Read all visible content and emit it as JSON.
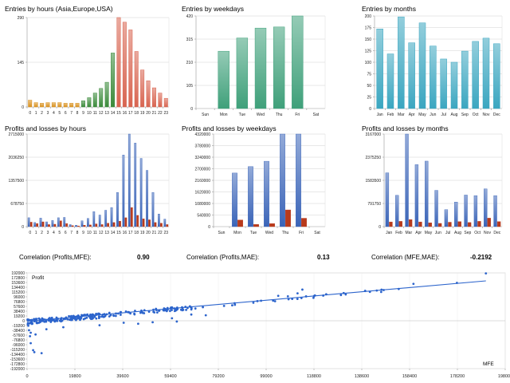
{
  "colors": {
    "hours": [
      "#d8901c",
      "#d8901c",
      "#d8901c",
      "#d8901c",
      "#d8901c",
      "#d8901c",
      "#d8901c",
      "#d8901c",
      "#d8901c",
      "#3a8a3a",
      "#3a8a3a",
      "#3a8a3a",
      "#3a8a3a",
      "#3a8a3a",
      "#3a8a3a",
      "#d86450",
      "#d86450",
      "#d86450",
      "#d86450",
      "#d86450",
      "#d86450",
      "#d86450",
      "#d86450",
      "#d86450"
    ],
    "weekdays": "#3fa07a",
    "months": "#3aa6c0",
    "profit": "#3a64b8",
    "loss": "#b83a1c",
    "scatter": "#2c64cc",
    "grid": "#d0d0d0",
    "border": "#d9d9d9"
  },
  "chart_data": [
    {
      "id": "entries-hours",
      "type": "bar",
      "title": "Entries by hours (Asia,Europe,USA)",
      "categories": [
        "0",
        "1",
        "2",
        "3",
        "4",
        "5",
        "6",
        "7",
        "8",
        "9",
        "10",
        "11",
        "12",
        "13",
        "14",
        "15",
        "16",
        "17",
        "18",
        "19",
        "20",
        "21",
        "22",
        "23"
      ],
      "values": [
        22,
        14,
        12,
        14,
        14,
        14,
        12,
        12,
        12,
        20,
        30,
        45,
        60,
        80,
        175,
        290,
        275,
        250,
        180,
        120,
        85,
        62,
        45,
        28
      ],
      "yticks": [
        "0",
        "145",
        "290"
      ],
      "ylim": [
        0,
        290
      ]
    },
    {
      "id": "entries-weekdays",
      "type": "bar",
      "title": "Entries by weekdays",
      "categories": [
        "Sun",
        "Mon",
        "Tue",
        "Wed",
        "Thu",
        "Fri",
        "Sat"
      ],
      "values": [
        0,
        260,
        320,
        365,
        370,
        420,
        0
      ],
      "yticks": [
        "0",
        "105",
        "210",
        "315",
        "420"
      ],
      "ylim": [
        0,
        420
      ]
    },
    {
      "id": "entries-months",
      "type": "bar",
      "title": "Entries by months",
      "categories": [
        "Jan",
        "Feb",
        "Mar",
        "Apr",
        "May",
        "Jun",
        "Jul",
        "Aug",
        "Sep",
        "Oct",
        "Nov",
        "Dec"
      ],
      "values": [
        172,
        118,
        198,
        142,
        185,
        135,
        107,
        100,
        124,
        145,
        152,
        140
      ],
      "yticks": [
        "0",
        "25",
        "50",
        "75",
        "100",
        "125",
        "150",
        "175",
        "200"
      ],
      "ylim": [
        0,
        200
      ]
    },
    {
      "id": "pl-hours",
      "type": "bar",
      "title": "Profits and losses by hours",
      "categories": [
        "0",
        "1",
        "2",
        "3",
        "4",
        "5",
        "6",
        "7",
        "8",
        "9",
        "10",
        "11",
        "12",
        "13",
        "14",
        "15",
        "16",
        "17",
        "18",
        "19",
        "20",
        "21",
        "22",
        "23"
      ],
      "series": [
        {
          "values": [
            260000,
            120000,
            250000,
            140000,
            180000,
            260000,
            270000,
            60000,
            40000,
            170000,
            240000,
            440000,
            340000,
            480000,
            560000,
            1000000,
            2100000,
            2715000,
            2450000,
            2000000,
            1650000,
            1000000,
            370000,
            220000
          ]
        },
        {
          "values": [
            130000,
            90000,
            140000,
            60000,
            70000,
            170000,
            90000,
            30000,
            20000,
            40000,
            50000,
            80000,
            60000,
            100000,
            120000,
            160000,
            260000,
            560000,
            330000,
            230000,
            200000,
            120000,
            100000,
            60000
          ]
        }
      ],
      "yticks": [
        "0",
        "678750",
        "1357500",
        "2036250",
        "2715000"
      ],
      "ylim": [
        0,
        2715000
      ]
    },
    {
      "id": "pl-weekdays",
      "type": "bar",
      "title": "Profits and losses by weekdays",
      "categories": [
        "Sun",
        "Mon",
        "Tue",
        "Wed",
        "Thu",
        "Fri",
        "Sat"
      ],
      "series": [
        {
          "values": [
            0,
            2500000,
            2800000,
            3050000,
            4320000,
            4320000,
            0
          ]
        },
        {
          "values": [
            0,
            310000,
            100000,
            140000,
            780000,
            390000,
            0
          ]
        }
      ],
      "yticks": [
        "0",
        "540000",
        "1080000",
        "1620000",
        "2160000",
        "2700000",
        "3240000",
        "3780000",
        "4320000"
      ],
      "ylim": [
        0,
        4320000
      ]
    },
    {
      "id": "pl-months",
      "type": "bar",
      "title": "Profits and losses by months",
      "categories": [
        "Jan",
        "Feb",
        "Mar",
        "Apr",
        "May",
        "Jun",
        "Jul",
        "Aug",
        "Sep",
        "Oct",
        "Nov",
        "Dec"
      ],
      "series": [
        {
          "values": [
            1840000,
            1070000,
            3167000,
            2120000,
            2240000,
            1240000,
            580000,
            840000,
            1080000,
            1060000,
            1290000,
            1060000
          ]
        },
        {
          "values": [
            160000,
            180000,
            240000,
            160000,
            130000,
            110000,
            150000,
            170000,
            140000,
            180000,
            290000,
            170000
          ]
        }
      ],
      "yticks": [
        "0",
        "791750",
        "1583500",
        "2375250",
        "3167000"
      ],
      "ylim": [
        0,
        3167000
      ]
    },
    {
      "id": "scatter",
      "type": "scatter",
      "ylabel": "Profit",
      "xlabel": "MFE",
      "xlim": [
        0,
        198000
      ],
      "ylim": [
        -192000,
        192000
      ],
      "xticks": [
        "0",
        "19800",
        "39600",
        "59400",
        "79200",
        "99000",
        "118800",
        "138600",
        "158400",
        "178200",
        "198000"
      ],
      "yticks": [
        "192000",
        "172800",
        "153600",
        "134400",
        "115200",
        "96000",
        "76800",
        "57600",
        "38400",
        "19200",
        "0",
        "-19200",
        "-38400",
        "-57600",
        "-76800",
        "-96000",
        "-115200",
        "-134400",
        "-153600",
        "-172800",
        "-192000"
      ],
      "trend": {
        "x": [
          0,
          190000
        ],
        "y": [
          -2000,
          160000
        ]
      },
      "clusters": [
        {
          "x": [
            200,
            30000
          ],
          "slope": 0.78,
          "spread": 10000,
          "count": 150
        },
        {
          "x": [
            30000,
            70000
          ],
          "slope": 0.82,
          "spread": 8000,
          "count": 80
        },
        {
          "x": [
            70000,
            160000
          ],
          "slope": 0.84,
          "spread": 7000,
          "count": 30
        }
      ],
      "outliers": [
        [
          500,
          -20000
        ],
        [
          800,
          -38000
        ],
        [
          1200,
          -62000
        ],
        [
          1500,
          -90000
        ],
        [
          2500,
          -118000
        ],
        [
          3000,
          -126000
        ],
        [
          6000,
          -130000
        ],
        [
          1500,
          -48000
        ],
        [
          3500,
          -55000
        ],
        [
          8000,
          -34000
        ],
        [
          15000,
          -26000
        ],
        [
          30000,
          -18000
        ],
        [
          40000,
          -8000
        ],
        [
          46000,
          -12000
        ],
        [
          52000,
          -6000
        ],
        [
          60000,
          10000
        ],
        [
          62000,
          -3000
        ],
        [
          68000,
          25000
        ],
        [
          74000,
          22000
        ],
        [
          160000,
          148000
        ],
        [
          178000,
          152000
        ],
        [
          190000,
          190000
        ],
        [
          140000,
          120000
        ],
        [
          112000,
          110000
        ],
        [
          114000,
          125000
        ],
        [
          104000,
          100000
        ],
        [
          108000,
          98000
        ]
      ]
    }
  ],
  "correlations": [
    {
      "label": "Correlation (Profits,MFE):",
      "value": "0.90"
    },
    {
      "label": "Correlation (Profits,MAE):",
      "value": "0.13"
    },
    {
      "label": "Correlation (MFE,MAE):",
      "value": "-0.2192"
    }
  ]
}
